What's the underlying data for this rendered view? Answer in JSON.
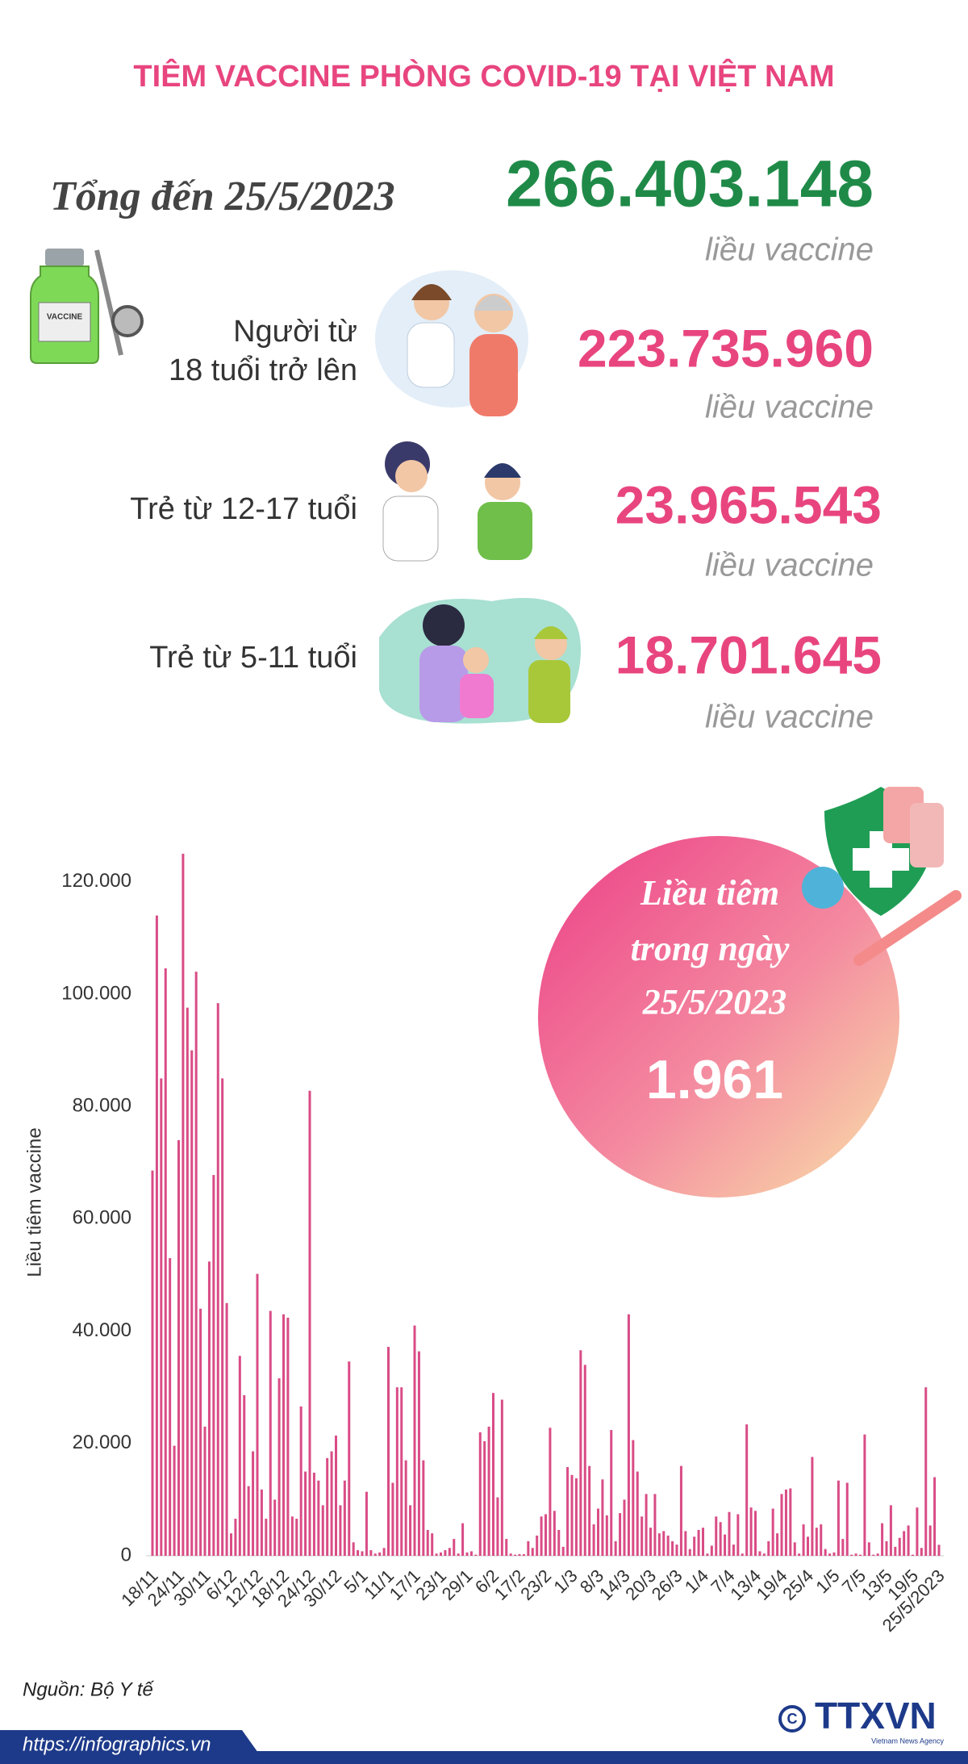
{
  "header": {
    "title": "TIÊM VACCINE PHÒNG COVID-19 TẠI VIỆT NAM"
  },
  "total": {
    "label": "Tổng đến 25/5/2023",
    "value": "266.403.148",
    "unit": "liều vaccine"
  },
  "groups": [
    {
      "label_lines": [
        "Người từ",
        "18 tuổi trở lên"
      ],
      "value": "223.735.960",
      "unit": "liều vaccine"
    },
    {
      "label_lines": [
        "Trẻ từ 12-17 tuổi"
      ],
      "value": "23.965.543",
      "unit": "liều vaccine"
    },
    {
      "label_lines": [
        "Trẻ từ 5-11 tuổi"
      ],
      "value": "18.701.645",
      "unit": "liều vaccine"
    }
  ],
  "daily": {
    "title_lines": [
      "Liều tiêm",
      "trong ngày",
      "25/5/2023"
    ],
    "value": "1.961"
  },
  "footer": {
    "source": "Nguồn: Bộ Y tế",
    "url": "https://infographics.vn",
    "logo": "TTXVN",
    "logo_sub": "Vietnam News Agency"
  },
  "chart_data": {
    "type": "bar",
    "ylabel": "Liều tiêm vaccine",
    "color": "#d94c86",
    "grid": false,
    "ylim": [
      0,
      125000
    ],
    "yticks": [
      0,
      {
        "value": 20000,
        "label": "20.000"
      },
      {
        "value": 40000,
        "label": "40.000"
      },
      {
        "value": 60000,
        "label": "60.000"
      },
      {
        "value": 80000,
        "label": "80.000"
      },
      {
        "value": 100000,
        "label": "100.000"
      },
      {
        "value": 120000,
        "label": "120.000"
      }
    ],
    "categories": [
      "18/11",
      null,
      null,
      null,
      null,
      null,
      "24/11",
      null,
      null,
      null,
      null,
      null,
      "30/11",
      null,
      null,
      null,
      null,
      null,
      "6/12",
      null,
      null,
      null,
      null,
      null,
      "12/12",
      null,
      null,
      null,
      null,
      null,
      "18/12",
      null,
      null,
      null,
      null,
      null,
      "24/12",
      null,
      null,
      null,
      null,
      null,
      "30/12",
      null,
      null,
      null,
      null,
      null,
      "5/1",
      null,
      null,
      null,
      null,
      null,
      "11/1",
      null,
      null,
      null,
      null,
      null,
      "17/1",
      null,
      null,
      null,
      null,
      null,
      "23/1",
      null,
      null,
      null,
      null,
      null,
      "29/1",
      null,
      null,
      null,
      null,
      null,
      "6/2",
      null,
      null,
      null,
      null,
      null,
      "17/2",
      null,
      null,
      null,
      null,
      null,
      "23/2",
      null,
      null,
      null,
      null,
      null,
      "1/3",
      null,
      null,
      null,
      null,
      null,
      "8/3",
      null,
      null,
      null,
      null,
      null,
      "14/3",
      null,
      null,
      null,
      null,
      null,
      "20/3",
      null,
      null,
      null,
      null,
      null,
      "26/3",
      null,
      null,
      null,
      null,
      null,
      "1/4",
      null,
      null,
      null,
      null,
      null,
      "7/4",
      null,
      null,
      null,
      null,
      null,
      "13/4",
      null,
      null,
      null,
      null,
      null,
      "19/4",
      null,
      null,
      null,
      null,
      null,
      "25/4",
      null,
      null,
      null,
      null,
      null,
      "1/5",
      null,
      null,
      null,
      null,
      null,
      "7/5",
      null,
      null,
      null,
      null,
      null,
      "13/5",
      null,
      null,
      null,
      null,
      null,
      "19/5",
      null,
      null,
      null,
      null,
      null,
      "25/5/2023"
    ],
    "values": [
      68600,
      114000,
      85000,
      104600,
      53000,
      19600,
      74000,
      125000,
      97600,
      90000,
      104000,
      44000,
      23000,
      52400,
      67800,
      98400,
      85000,
      45000,
      4000,
      6600,
      35600,
      28600,
      12400,
      18600,
      50200,
      11800,
      6600,
      43600,
      10000,
      31600,
      43000,
      42400,
      7000,
      6600,
      26600,
      15000,
      82800,
      14800,
      13400,
      9000,
      17400,
      18600,
      21400,
      9000,
      13400,
      34600,
      2400,
      1000,
      800,
      11400,
      1000,
      400,
      600,
      1400,
      37200,
      13000,
      30000,
      30000,
      17000,
      9000,
      41000,
      36400,
      17000,
      4600,
      4000,
      400,
      600,
      1000,
      1400,
      3000,
      400,
      5800,
      600,
      800,
      200,
      22000,
      20400,
      23000,
      29000,
      10400,
      27800,
      3000,
      400,
      200,
      300,
      300,
      2600,
      1400,
      3600,
      7000,
      7400,
      22800,
      8000,
      4600,
      1600,
      15800,
      14400,
      13800,
      36600,
      34000,
      16000,
      5600,
      8400,
      13600,
      7200,
      22400,
      2600,
      7600,
      10000,
      43000,
      20600,
      15000,
      7000,
      11000,
      5000,
      11000,
      4000,
      4400,
      3600,
      2600,
      2000,
      16000,
      4400,
      1200,
      3400,
      4600,
      5000,
      400,
      1800,
      7000,
      6000,
      3800,
      7800,
      2000,
      7400,
      400,
      23400,
      8600,
      8000,
      800,
      400,
      2600,
      8400,
      4000,
      11000,
      11800,
      12000,
      2400,
      400,
      5600,
      3400,
      17600,
      5000,
      5600,
      1200,
      400,
      600,
      13400,
      3000,
      13000,
      200,
      400,
      200,
      21600,
      2400,
      200,
      400,
      5800,
      2600,
      9000,
      1600,
      3200,
      4400,
      5400,
      200,
      8600,
      1400,
      30000,
      5400,
      14000,
      1961
    ]
  }
}
